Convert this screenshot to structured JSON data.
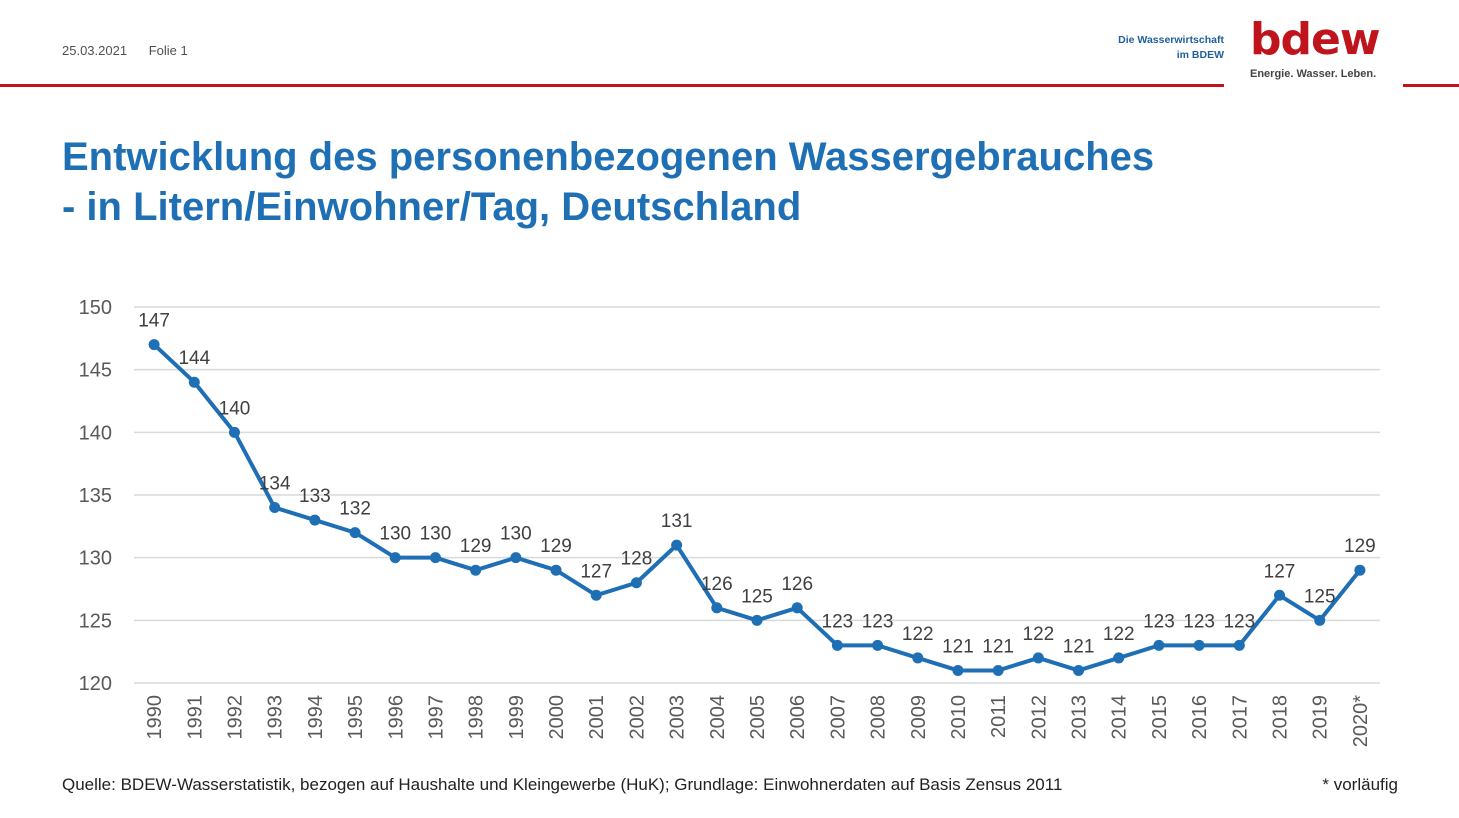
{
  "header": {
    "date": "25.03.2021",
    "slide_label": "Folie 1",
    "tagline_line1": "Die Wasserwirtschaft",
    "tagline_line2": "im BDEW",
    "logo_text": "bdew",
    "slogan": "Energie. Wasser. Leben."
  },
  "title": {
    "line1": "Entwicklung des personenbezogenen Wassergebrauches",
    "line2": "- in Litern/Einwohner/Tag, Deutschland"
  },
  "footer": {
    "source": "Quelle: BDEW-Wasserstatistik, bezogen auf Haushalte und Kleingewerbe (HuK); Grundlage: Einwohnerdaten auf Basis Zensus 2011",
    "note": "* vorläufig"
  },
  "colors": {
    "accent_red": "#c0141d",
    "title_blue": "#1f6fb5",
    "line_blue": "#1f6fb5",
    "grid": "#d9d9d9"
  },
  "chart_data": {
    "type": "line",
    "categories": [
      "1990",
      "1991",
      "1992",
      "1993",
      "1994",
      "1995",
      "1996",
      "1997",
      "1998",
      "1999",
      "2000",
      "2001",
      "2002",
      "2003",
      "2004",
      "2005",
      "2006",
      "2007",
      "2008",
      "2009",
      "2010",
      "2011",
      "2012",
      "2013",
      "2014",
      "2015",
      "2016",
      "2017",
      "2018",
      "2019",
      "2020*"
    ],
    "values": [
      147,
      144,
      140,
      134,
      133,
      132,
      130,
      130,
      129,
      130,
      129,
      127,
      128,
      131,
      126,
      125,
      126,
      123,
      123,
      122,
      121,
      121,
      122,
      121,
      122,
      123,
      123,
      123,
      127,
      125,
      129
    ],
    "ylim": [
      120,
      150
    ],
    "yticks": [
      "120",
      "125",
      "130",
      "135",
      "140",
      "145",
      "150"
    ],
    "grid": true,
    "data_labels": true
  }
}
